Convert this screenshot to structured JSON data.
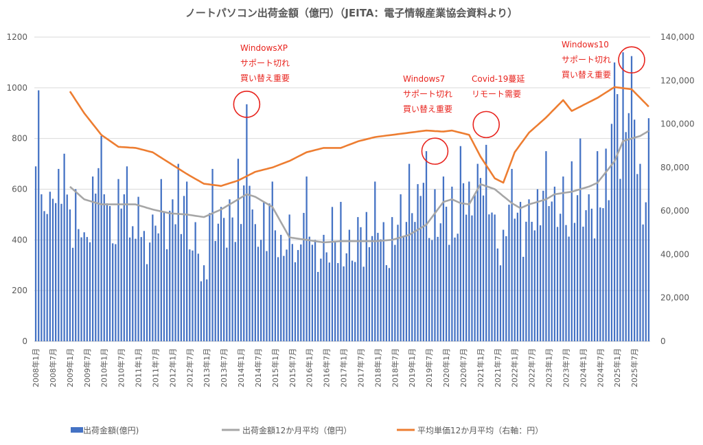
{
  "chart_data": {
    "type": "bar+line",
    "title": "ノートパソコン出荷金額（億円）（JEITA：電子情報産業協会資料より）",
    "y_left": {
      "ylim": [
        0,
        1200
      ],
      "ticks": [
        "0",
        "200",
        "400",
        "600",
        "800",
        "1000",
        "1200"
      ]
    },
    "y_right": {
      "ylim": [
        0,
        140000
      ],
      "ticks": [
        "0",
        "20,000",
        "40,000",
        "60,000",
        "80,000",
        "100,000",
        "120,000",
        "140,000"
      ]
    },
    "x_start": "2008-01",
    "x_end": "2025-12",
    "x_ticks": [
      "2008年1月",
      "2008年7月",
      "2009年1月",
      "2009年7月",
      "2010年1月",
      "2010年7月",
      "2011年1月",
      "2011年7月",
      "2012年1月",
      "2012年7月",
      "2013年1月",
      "2013年7月",
      "2014年1月",
      "2014年7月",
      "2015年1月",
      "2015年7月",
      "2016年1月",
      "2016年7月",
      "2017年1月",
      "2017年7月",
      "2018年1月",
      "2018年7月",
      "2019年1月",
      "2019年7月",
      "2020年1月",
      "2020年7月",
      "2021年1月",
      "2021年7月",
      "2022年1月",
      "2022年7月",
      "2023年1月",
      "2023年7月",
      "2024年1月",
      "2024年7月",
      "2025年1月",
      "2025年7月"
    ],
    "grid": true,
    "legend_position": "bottom",
    "series": [
      {
        "name": "出荷金額(億円)",
        "type": "bar",
        "axis": "left",
        "color": "#4472c4",
        "anchors": [
          [
            "2008-01",
            690
          ],
          [
            "2008-02",
            990
          ],
          [
            "2008-03",
            580
          ],
          [
            "2008-06",
            590
          ],
          [
            "2008-09",
            680
          ],
          [
            "2008-11",
            740
          ],
          [
            "2009-03",
            600
          ],
          [
            "2009-06",
            430
          ],
          [
            "2009-09",
            650
          ],
          [
            "2009-12",
            810
          ],
          [
            "2010-01",
            580
          ],
          [
            "2010-06",
            640
          ],
          [
            "2010-09",
            690
          ],
          [
            "2011-01",
            570
          ],
          [
            "2011-06",
            500
          ],
          [
            "2011-09",
            640
          ],
          [
            "2012-01",
            560
          ],
          [
            "2012-03",
            700
          ],
          [
            "2012-06",
            630
          ],
          [
            "2012-09",
            470
          ],
          [
            "2012-12",
            300
          ],
          [
            "2013-03",
            680
          ],
          [
            "2013-06",
            530
          ],
          [
            "2013-09",
            560
          ],
          [
            "2013-12",
            720
          ],
          [
            "2014-03",
            935
          ],
          [
            "2014-05",
            520
          ],
          [
            "2014-09",
            550
          ],
          [
            "2014-12",
            630
          ],
          [
            "2015-03",
            420
          ],
          [
            "2015-06",
            500
          ],
          [
            "2015-09",
            360
          ],
          [
            "2015-12",
            650
          ],
          [
            "2016-03",
            400
          ],
          [
            "2016-06",
            420
          ],
          [
            "2016-09",
            530
          ],
          [
            "2016-12",
            550
          ],
          [
            "2017-03",
            440
          ],
          [
            "2017-06",
            490
          ],
          [
            "2017-09",
            510
          ],
          [
            "2017-12",
            630
          ],
          [
            "2018-03",
            470
          ],
          [
            "2018-06",
            490
          ],
          [
            "2018-09",
            580
          ],
          [
            "2018-12",
            700
          ],
          [
            "2019-03",
            620
          ],
          [
            "2019-06",
            750
          ],
          [
            "2019-09",
            600
          ],
          [
            "2019-12",
            650
          ],
          [
            "2020-03",
            610
          ],
          [
            "2020-06",
            770
          ],
          [
            "2020-09",
            630
          ],
          [
            "2020-12",
            700
          ],
          [
            "2021-03",
            775
          ],
          [
            "2021-06",
            500
          ],
          [
            "2021-09",
            440
          ],
          [
            "2021-12",
            680
          ],
          [
            "2022-03",
            550
          ],
          [
            "2022-06",
            560
          ],
          [
            "2022-09",
            600
          ],
          [
            "2022-12",
            750
          ],
          [
            "2023-03",
            610
          ],
          [
            "2023-06",
            650
          ],
          [
            "2023-09",
            710
          ],
          [
            "2023-12",
            800
          ],
          [
            "2024-03",
            580
          ],
          [
            "2024-06",
            750
          ],
          [
            "2024-09",
            760
          ],
          [
            "2024-12",
            1100
          ],
          [
            "2025-03",
            1140
          ],
          [
            "2025-06",
            1125
          ],
          [
            "2025-09",
            700
          ],
          [
            "2025-12",
            880
          ]
        ]
      },
      {
        "name": "出荷金額12か月平均（億円）",
        "type": "line",
        "axis": "left",
        "color": "#a6a6a6",
        "anchors": [
          [
            "2009-01",
            610
          ],
          [
            "2009-06",
            560
          ],
          [
            "2009-12",
            540
          ],
          [
            "2010-06",
            540
          ],
          [
            "2010-12",
            540
          ],
          [
            "2011-06",
            520
          ],
          [
            "2011-12",
            505
          ],
          [
            "2012-06",
            500
          ],
          [
            "2012-12",
            490
          ],
          [
            "2013-06",
            520
          ],
          [
            "2013-12",
            560
          ],
          [
            "2014-03",
            580
          ],
          [
            "2014-06",
            570
          ],
          [
            "2014-12",
            530
          ],
          [
            "2015-03",
            470
          ],
          [
            "2015-06",
            410
          ],
          [
            "2015-12",
            400
          ],
          [
            "2016-06",
            390
          ],
          [
            "2016-12",
            395
          ],
          [
            "2017-06",
            395
          ],
          [
            "2017-12",
            395
          ],
          [
            "2018-06",
            400
          ],
          [
            "2018-12",
            420
          ],
          [
            "2019-06",
            460
          ],
          [
            "2019-12",
            550
          ],
          [
            "2020-03",
            560
          ],
          [
            "2020-06",
            545
          ],
          [
            "2020-09",
            540
          ],
          [
            "2021-01",
            620
          ],
          [
            "2021-06",
            600
          ],
          [
            "2021-12",
            545
          ],
          [
            "2022-03",
            525
          ],
          [
            "2022-06",
            540
          ],
          [
            "2022-12",
            560
          ],
          [
            "2023-03",
            580
          ],
          [
            "2023-06",
            585
          ],
          [
            "2023-09",
            590
          ],
          [
            "2023-12",
            600
          ],
          [
            "2024-03",
            610
          ],
          [
            "2024-06",
            625
          ],
          [
            "2024-12",
            710
          ],
          [
            "2025-03",
            790
          ],
          [
            "2025-09",
            810
          ],
          [
            "2025-12",
            830
          ]
        ]
      },
      {
        "name": "平均単価12か月平均（右軸：円）",
        "type": "line",
        "axis": "right",
        "color": "#ed7d31",
        "anchors": [
          [
            "2009-01",
            115000
          ],
          [
            "2009-06",
            105000
          ],
          [
            "2009-12",
            95000
          ],
          [
            "2010-06",
            89500
          ],
          [
            "2010-12",
            89000
          ],
          [
            "2011-06",
            87000
          ],
          [
            "2011-12",
            82000
          ],
          [
            "2012-06",
            77000
          ],
          [
            "2012-12",
            72500
          ],
          [
            "2013-06",
            71500
          ],
          [
            "2013-12",
            74000
          ],
          [
            "2014-06",
            78000
          ],
          [
            "2014-12",
            80000
          ],
          [
            "2015-06",
            83000
          ],
          [
            "2015-12",
            87000
          ],
          [
            "2016-06",
            89000
          ],
          [
            "2016-12",
            89000
          ],
          [
            "2017-06",
            92000
          ],
          [
            "2017-12",
            94000
          ],
          [
            "2018-06",
            95000
          ],
          [
            "2018-12",
            96000
          ],
          [
            "2019-06",
            97000
          ],
          [
            "2019-12",
            96500
          ],
          [
            "2020-03",
            97000
          ],
          [
            "2020-09",
            95000
          ],
          [
            "2021-01",
            85000
          ],
          [
            "2021-06",
            75000
          ],
          [
            "2021-09",
            73000
          ],
          [
            "2022-01",
            87000
          ],
          [
            "2022-06",
            96000
          ],
          [
            "2022-12",
            103000
          ],
          [
            "2023-06",
            111000
          ],
          [
            "2023-09",
            106000
          ],
          [
            "2023-12",
            108000
          ],
          [
            "2024-06",
            112000
          ],
          [
            "2024-12",
            117000
          ],
          [
            "2025-06",
            116000
          ],
          [
            "2025-12",
            108000
          ]
        ]
      }
    ],
    "annotations": [
      {
        "lines": [
          "WindowsXP",
          "サポート切れ",
          "買い替え重要"
        ],
        "circle_at": [
          "2014-03",
          935
        ]
      },
      {
        "lines": [
          "Windows7",
          "サポート切れ",
          "買い替え重要"
        ],
        "circle_at": [
          "2019-09",
          750
        ]
      },
      {
        "lines": [
          "Covid-19蔓延",
          "リモート需要"
        ],
        "circle_at": [
          "2021-03",
          855
        ]
      },
      {
        "lines": [
          "Windows10",
          "サポート切れ",
          "買い替え重要"
        ],
        "circle_at": [
          "2025-06",
          1110
        ]
      }
    ]
  }
}
